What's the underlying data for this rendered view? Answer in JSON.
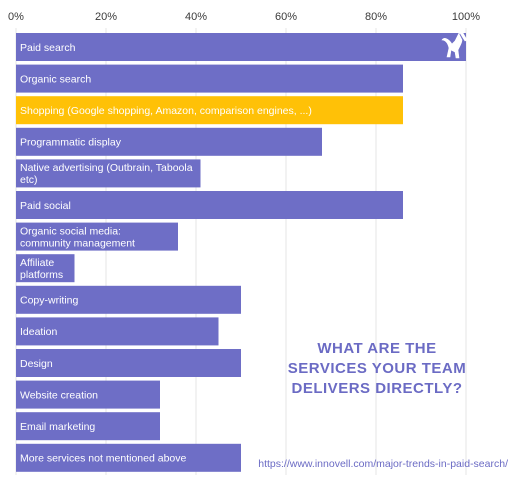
{
  "chart_data": {
    "type": "bar",
    "orientation": "horizontal",
    "title_lines": [
      "WHAT ARE THE",
      "SERVICES YOUR TEAM",
      "DELIVERS DIRECTLY?"
    ],
    "source_text": "https://www.innovell.com/major-trends-in-paid-search/",
    "xlim": [
      0,
      100
    ],
    "x_ticks": [
      "0%",
      "20%",
      "40%",
      "60%",
      "80%",
      "100%"
    ],
    "x_tick_values": [
      0,
      20,
      40,
      60,
      80,
      100
    ],
    "grid": "vertical",
    "bar_color": "#6e6ec6",
    "highlight_color": "#ffc107",
    "title_color": "#6b6bc4",
    "logo_icon": "gazelle-icon",
    "categories": [
      "Paid search",
      "Organic search",
      "Shopping (Google shopping, Amazon, comparison engines, ...)",
      "Programmatic display",
      "Native advertising (Outbrain, Taboola etc)",
      "Paid social",
      "Organic social media: community management",
      "Affiliate platforms",
      "Copy-writing",
      "Ideation",
      "Design",
      "Website creation",
      "Email marketing",
      "More services not mentioned above"
    ],
    "label_lines": [
      [
        "Paid search"
      ],
      [
        "Organic search"
      ],
      [
        "Shopping (Google shopping, Amazon, comparison engines, ...)"
      ],
      [
        "Programmatic display"
      ],
      [
        "Native advertising (Outbrain, Taboola",
        "etc)"
      ],
      [
        "Paid social"
      ],
      [
        "Organic social media:",
        "community management"
      ],
      [
        "Affiliate",
        "platforms"
      ],
      [
        "Copy-writing"
      ],
      [
        "Ideation"
      ],
      [
        "Design"
      ],
      [
        "Website creation"
      ],
      [
        "Email marketing"
      ],
      [
        "More services not mentioned above"
      ]
    ],
    "values": [
      100,
      86,
      86,
      68,
      41,
      86,
      36,
      13,
      50,
      45,
      50,
      32,
      32,
      50
    ],
    "highlighted_index": 2
  }
}
